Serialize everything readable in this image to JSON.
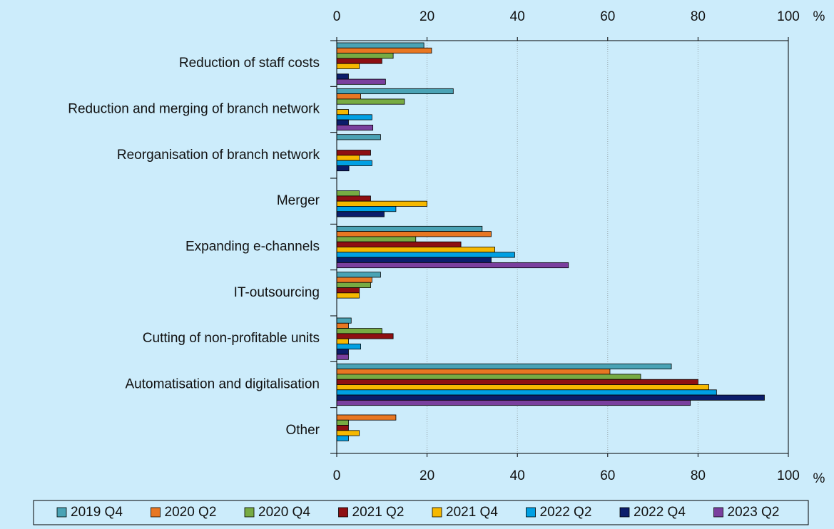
{
  "chart_data": {
    "type": "bar",
    "orientation": "horizontal",
    "categories": [
      "Reduction of staff costs",
      "Reduction and merging of branch network",
      "Reorganisation of branch network",
      "Merger",
      "Expanding e-channels",
      "IT-outsourcing",
      "Cutting of non-profitable units",
      "Automatisation and digitalisation",
      "Other"
    ],
    "series": [
      {
        "name": "2019 Q4",
        "color": "#4aa3b5",
        "values": [
          19.3,
          25.8,
          9.7,
          0,
          32.2,
          9.7,
          3.2,
          74.1,
          0
        ]
      },
      {
        "name": "2020 Q2",
        "color": "#e87722",
        "values": [
          21,
          5.3,
          0,
          0,
          34.2,
          7.8,
          2.6,
          60.5,
          13.1
        ]
      },
      {
        "name": "2020 Q4",
        "color": "#77ab43",
        "values": [
          12.5,
          15,
          0,
          5,
          17.5,
          7.5,
          10,
          67.3,
          2.6
        ]
      },
      {
        "name": "2021 Q2",
        "color": "#8e0f12",
        "values": [
          10,
          0,
          7.5,
          7.5,
          27.5,
          5,
          12.5,
          80,
          2.6
        ]
      },
      {
        "name": "2021 Q4",
        "color": "#f6b800",
        "values": [
          5,
          2.6,
          5,
          20,
          35,
          5,
          2.6,
          82.4,
          5
        ]
      },
      {
        "name": "2022 Q2",
        "color": "#00a0e3",
        "values": [
          0,
          7.8,
          7.8,
          13.1,
          39.4,
          0,
          5.3,
          84.1,
          2.6
        ]
      },
      {
        "name": "2022 Q4",
        "color": "#0b1d6b",
        "values": [
          2.6,
          2.6,
          2.7,
          10.5,
          34.2,
          0,
          2.6,
          94.7,
          0
        ]
      },
      {
        "name": "2023 Q2",
        "color": "#7a3f9e",
        "values": [
          10.8,
          8,
          0,
          0,
          51.3,
          0,
          2.6,
          78.3,
          0
        ]
      }
    ],
    "xlim": [
      0,
      100
    ],
    "xticks": [
      0,
      20,
      40,
      60,
      80,
      100
    ],
    "x_unit": "%",
    "grid": true,
    "legend": "bottom"
  }
}
